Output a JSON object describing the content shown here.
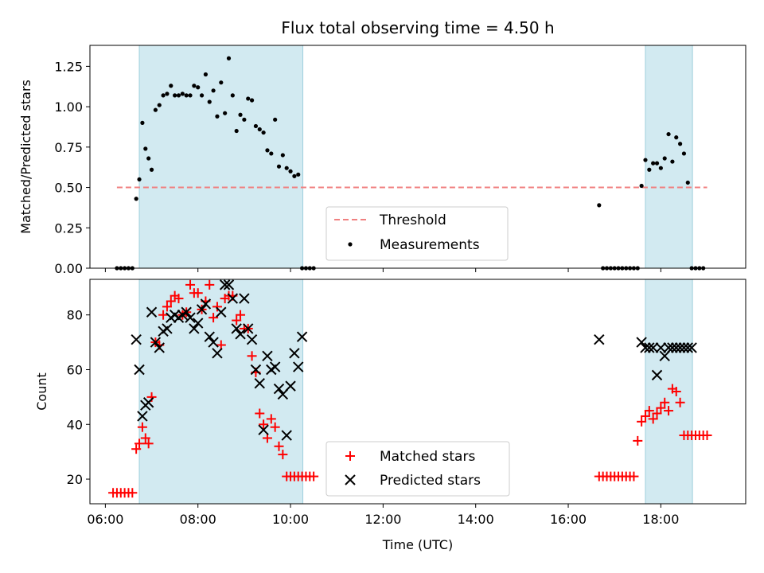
{
  "chart_data": [
    {
      "type": "scatter",
      "title": "Flux total observing time = 4.50 h",
      "xlabel": "",
      "ylabel": "Matched/Predicted stars",
      "xlim": [
        "05:40",
        "19:50"
      ],
      "ylim": [
        0,
        1.38
      ],
      "yticks": [
        "0.00",
        "0.25",
        "0.50",
        "0.75",
        "1.00",
        "1.25"
      ],
      "grid": false,
      "legend_position": "lower-center",
      "shaded_intervals": [
        [
          "06:44",
          "10:16"
        ],
        [
          "17:40",
          "18:41"
        ]
      ],
      "threshold": {
        "name": "Threshold",
        "value": 0.5,
        "x_range": [
          "06:15",
          "19:00"
        ],
        "color": "#f08080"
      },
      "series": [
        {
          "name": "Measurements",
          "marker": "dot",
          "color": "#000000",
          "x": [
            "06:15",
            "06:20",
            "06:25",
            "06:30",
            "06:35",
            "06:40",
            "06:44",
            "06:48",
            "06:52",
            "06:56",
            "07:00",
            "07:05",
            "07:10",
            "07:15",
            "07:20",
            "07:25",
            "07:30",
            "07:35",
            "07:40",
            "07:45",
            "07:50",
            "07:55",
            "08:00",
            "08:05",
            "08:10",
            "08:15",
            "08:20",
            "08:25",
            "08:30",
            "08:35",
            "08:40",
            "08:45",
            "08:50",
            "08:55",
            "09:00",
            "09:05",
            "09:10",
            "09:15",
            "09:20",
            "09:25",
            "09:30",
            "09:35",
            "09:40",
            "09:45",
            "09:50",
            "09:55",
            "10:00",
            "10:05",
            "10:10",
            "10:15",
            "10:20",
            "10:25",
            "10:30",
            "16:40",
            "16:45",
            "16:50",
            "16:55",
            "17:00",
            "17:05",
            "17:10",
            "17:15",
            "17:20",
            "17:25",
            "17:30",
            "17:35",
            "17:40",
            "17:45",
            "17:50",
            "17:55",
            "18:00",
            "18:05",
            "18:10",
            "18:15",
            "18:20",
            "18:25",
            "18:30",
            "18:35",
            "18:40",
            "18:45",
            "18:50",
            "18:55"
          ],
          "y": [
            0,
            0,
            0,
            0,
            0,
            0.43,
            0.55,
            0.9,
            0.74,
            0.68,
            0.61,
            0.98,
            1.01,
            1.07,
            1.08,
            1.13,
            1.07,
            1.07,
            1.08,
            1.07,
            1.07,
            1.13,
            1.12,
            1.07,
            1.2,
            1.03,
            1.1,
            0.94,
            1.15,
            0.96,
            1.3,
            1.07,
            0.85,
            0.95,
            0.92,
            1.05,
            1.04,
            0.88,
            0.86,
            0.84,
            0.73,
            0.71,
            0.92,
            0.63,
            0.7,
            0.62,
            0.6,
            0.57,
            0.58,
            0,
            0,
            0,
            0,
            0.39,
            0,
            0,
            0,
            0,
            0,
            0,
            0,
            0,
            0,
            0,
            0.51,
            0.67,
            0.61,
            0.65,
            0.65,
            0.62,
            0.68,
            0.83,
            0.66,
            0.81,
            0.77,
            0.71,
            0.53,
            0,
            0,
            0,
            0
          ]
        }
      ]
    },
    {
      "type": "scatter",
      "title": "",
      "xlabel": "Time (UTC)",
      "ylabel": "Count",
      "xlim": [
        "05:40",
        "19:50"
      ],
      "ylim": [
        11,
        93
      ],
      "xticks": [
        "06:00",
        "08:00",
        "10:00",
        "12:00",
        "14:00",
        "16:00",
        "18:00"
      ],
      "yticks": [
        "20",
        "40",
        "60",
        "80"
      ],
      "grid": false,
      "legend_position": "lower-center",
      "shaded_intervals": [
        [
          "06:44",
          "10:16"
        ],
        [
          "17:40",
          "18:41"
        ]
      ],
      "series": [
        {
          "name": "Matched stars",
          "marker": "plus",
          "color": "#ff0000",
          "x": [
            "06:10",
            "06:15",
            "06:20",
            "06:25",
            "06:30",
            "06:35",
            "06:40",
            "06:44",
            "06:48",
            "06:52",
            "06:56",
            "07:00",
            "07:05",
            "07:10",
            "07:15",
            "07:20",
            "07:25",
            "07:30",
            "07:35",
            "07:40",
            "07:45",
            "07:50",
            "07:55",
            "08:00",
            "08:05",
            "08:10",
            "08:15",
            "08:20",
            "08:25",
            "08:30",
            "08:35",
            "08:40",
            "08:45",
            "08:50",
            "08:55",
            "09:00",
            "09:05",
            "09:10",
            "09:15",
            "09:20",
            "09:25",
            "09:30",
            "09:35",
            "09:40",
            "09:45",
            "09:50",
            "09:55",
            "10:00",
            "10:05",
            "10:10",
            "10:15",
            "10:20",
            "10:25",
            "10:30",
            "16:40",
            "16:45",
            "16:50",
            "16:55",
            "17:00",
            "17:05",
            "17:10",
            "17:15",
            "17:20",
            "17:25",
            "17:30",
            "17:35",
            "17:40",
            "17:45",
            "17:50",
            "17:55",
            "18:00",
            "18:05",
            "18:10",
            "18:15",
            "18:20",
            "18:25",
            "18:30",
            "18:35",
            "18:40",
            "18:45",
            "18:50",
            "18:55",
            "19:00"
          ],
          "y": [
            15,
            15,
            15,
            15,
            15,
            15,
            31,
            33,
            39,
            35,
            33,
            50,
            70,
            69,
            80,
            83,
            85,
            87,
            86,
            80,
            81,
            91,
            88,
            88,
            82,
            85,
            91,
            79,
            83,
            69,
            86,
            87,
            87,
            78,
            80,
            75,
            75,
            65,
            59,
            44,
            40,
            35,
            42,
            39,
            32,
            29,
            21,
            21,
            21,
            21,
            21,
            21,
            21,
            21,
            21,
            21,
            21,
            21,
            21,
            21,
            21,
            21,
            21,
            21,
            34,
            41,
            43,
            45,
            42,
            44,
            46,
            48,
            45,
            53,
            52,
            48,
            36,
            36,
            36,
            36,
            36,
            36,
            36
          ]
        },
        {
          "name": "Predicted stars",
          "marker": "x",
          "color": "#000000",
          "x": [
            "06:40",
            "06:44",
            "06:48",
            "06:52",
            "06:56",
            "07:00",
            "07:05",
            "07:10",
            "07:15",
            "07:20",
            "07:25",
            "07:30",
            "07:35",
            "07:40",
            "07:45",
            "07:50",
            "07:55",
            "08:00",
            "08:05",
            "08:10",
            "08:15",
            "08:20",
            "08:25",
            "08:30",
            "08:35",
            "08:40",
            "08:45",
            "08:50",
            "08:55",
            "09:00",
            "09:05",
            "09:10",
            "09:15",
            "09:20",
            "09:25",
            "09:30",
            "09:35",
            "09:40",
            "09:45",
            "09:50",
            "09:55",
            "10:00",
            "10:05",
            "10:10",
            "10:15",
            "16:40",
            "17:35",
            "17:40",
            "17:45",
            "17:50",
            "17:55",
            "18:00",
            "18:05",
            "18:10",
            "18:15",
            "18:20",
            "18:25",
            "18:30",
            "18:35",
            "18:40"
          ],
          "y": [
            71,
            60,
            43,
            47,
            48,
            81,
            70,
            68,
            74,
            75,
            79,
            80,
            79,
            80,
            81,
            79,
            75,
            77,
            82,
            84,
            72,
            70,
            66,
            81,
            91,
            91,
            86,
            75,
            73,
            86,
            75,
            71,
            60,
            55,
            38,
            65,
            60,
            61,
            53,
            51,
            36,
            54,
            66,
            61,
            72,
            71,
            70,
            68,
            68,
            68,
            58,
            68,
            65,
            68,
            68,
            68,
            68,
            68,
            68,
            68
          ]
        }
      ]
    }
  ]
}
